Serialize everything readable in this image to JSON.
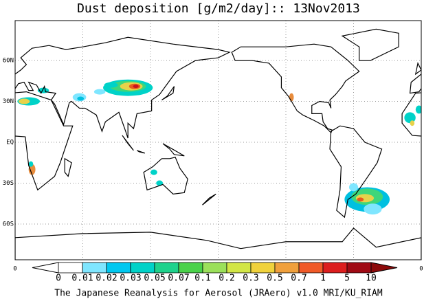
{
  "title": "Dust deposition [g/m2/day]:: 13Nov2013",
  "latitude_labels": [
    "60N",
    "30N",
    "EQ",
    "30S",
    "60S"
  ],
  "longitude_labels": [
    "0",
    "0"
  ],
  "colorbar": {
    "labels": [
      "0",
      "0.01",
      "0.02",
      "0.03",
      "0.05",
      "0.07",
      "0.1",
      "0.2",
      "0.3",
      "0.5",
      "0.7",
      "1",
      "5",
      "10"
    ]
  },
  "footer": "The Japanese Reanalysis for Aerosol (JRAero) v1.0 MRI/KU_RIAM"
}
